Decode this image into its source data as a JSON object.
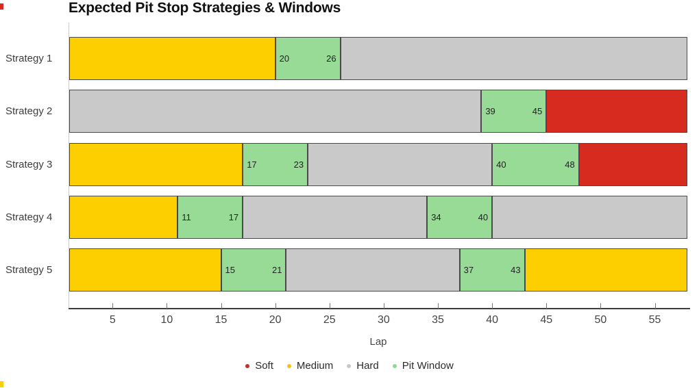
{
  "title": "Expected Pit Stop Strategies & Windows",
  "chart_data": {
    "type": "bar",
    "orientation": "horizontal-stacked",
    "title": "Expected Pit Stop Strategies & Windows",
    "xlabel": "Lap",
    "xlim": [
      1,
      58
    ],
    "xticks": [
      5,
      10,
      15,
      20,
      25,
      30,
      35,
      40,
      45,
      50,
      55
    ],
    "grid": false,
    "categories": [
      "Strategy 1",
      "Strategy 2",
      "Strategy 3",
      "Strategy 4",
      "Strategy 5"
    ],
    "palette": {
      "Soft": "#d62b1e",
      "Medium": "#fdcf00",
      "Hard": "#c9c9c9",
      "Pit Window": "#97db97"
    },
    "rows": [
      {
        "label": "Strategy 1",
        "segments": [
          {
            "compound": "Medium",
            "start": 1,
            "end": 20
          },
          {
            "compound": "Pit Window",
            "start": 20,
            "end": 26,
            "show_labels": true
          },
          {
            "compound": "Hard",
            "start": 26,
            "end": 58
          }
        ]
      },
      {
        "label": "Strategy 2",
        "segments": [
          {
            "compound": "Hard",
            "start": 1,
            "end": 39
          },
          {
            "compound": "Pit Window",
            "start": 39,
            "end": 45,
            "show_labels": true
          },
          {
            "compound": "Soft",
            "start": 45,
            "end": 58
          }
        ]
      },
      {
        "label": "Strategy 3",
        "segments": [
          {
            "compound": "Medium",
            "start": 1,
            "end": 17
          },
          {
            "compound": "Pit Window",
            "start": 17,
            "end": 23,
            "show_labels": true
          },
          {
            "compound": "Hard",
            "start": 23,
            "end": 40
          },
          {
            "compound": "Pit Window",
            "start": 40,
            "end": 48,
            "show_labels": true
          },
          {
            "compound": "Soft",
            "start": 48,
            "end": 58
          }
        ]
      },
      {
        "label": "Strategy 4",
        "segments": [
          {
            "compound": "Medium",
            "start": 1,
            "end": 11
          },
          {
            "compound": "Pit Window",
            "start": 11,
            "end": 17,
            "show_labels": true
          },
          {
            "compound": "Hard",
            "start": 17,
            "end": 34
          },
          {
            "compound": "Pit Window",
            "start": 34,
            "end": 40,
            "show_labels": true
          },
          {
            "compound": "Hard",
            "start": 40,
            "end": 58
          }
        ]
      },
      {
        "label": "Strategy 5",
        "segments": [
          {
            "compound": "Medium",
            "start": 1,
            "end": 15
          },
          {
            "compound": "Pit Window",
            "start": 15,
            "end": 21,
            "show_labels": true
          },
          {
            "compound": "Hard",
            "start": 21,
            "end": 37
          },
          {
            "compound": "Pit Window",
            "start": 37,
            "end": 43,
            "show_labels": true
          },
          {
            "compound": "Medium",
            "start": 43,
            "end": 58
          }
        ]
      }
    ],
    "legend_position": "bottom",
    "legend": [
      {
        "label": "Soft",
        "color": "#c03028"
      },
      {
        "label": "Medium",
        "color": "#f2c21c"
      },
      {
        "label": "Hard",
        "color": "#c9c9c9"
      },
      {
        "label": "Pit Window",
        "color": "#8fd88f"
      }
    ]
  },
  "artifacts": {
    "top_left_color": "#d62b1e",
    "bottom_left_color": "#fdcf00"
  }
}
